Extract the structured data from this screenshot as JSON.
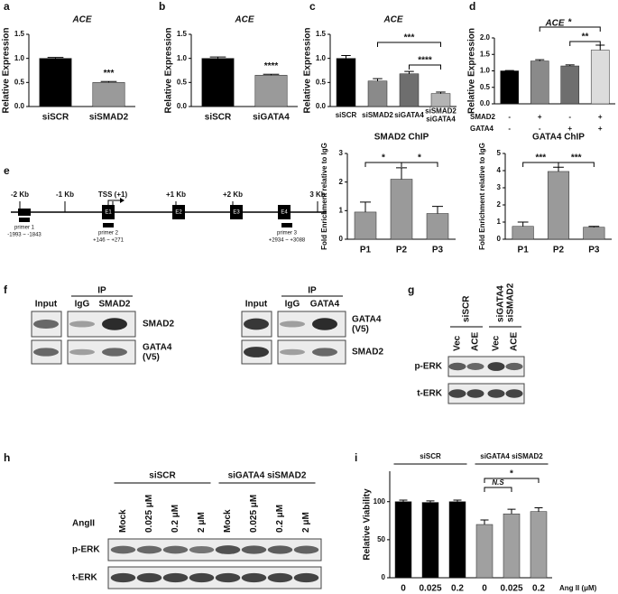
{
  "panels": [
    "a",
    "b",
    "c",
    "d",
    "e",
    "f",
    "g",
    "h",
    "i"
  ],
  "chart_data": [
    {
      "type": "bar",
      "title": "ACE",
      "y_label": "Relative Expression",
      "categories": [
        "siSCR",
        "siSMAD2"
      ],
      "values": [
        1.0,
        0.5
      ],
      "errors": [
        0.02,
        0.02
      ],
      "colors": [
        "#000000",
        "#9a9a9a"
      ],
      "ylim": [
        0,
        1.5
      ],
      "yticks": [
        {
          "value": 0,
          "label": "0.0"
        },
        0.5,
        {
          "value": 1,
          "label": "1.0"
        },
        1.5
      ],
      "annotations": [
        "***"
      ]
    },
    {
      "type": "bar",
      "title": "ACE",
      "y_label": "Relative Expression",
      "categories": [
        "siSCR",
        "siGATA4"
      ],
      "values": [
        1.0,
        0.65
      ],
      "errors": [
        0.03,
        0.02
      ],
      "colors": [
        "#000000",
        "#9a9a9a"
      ],
      "ylim": [
        0,
        1.5
      ],
      "yticks": [
        {
          "value": 0,
          "label": "0.0"
        },
        0.5,
        {
          "value": 1,
          "label": "1.0"
        },
        1.5
      ],
      "annotations": [
        "****"
      ]
    },
    {
      "type": "bar",
      "title": "ACE",
      "y_label": "Relative Expression",
      "categories": [
        "siSCR",
        "siSMAD2",
        "siGATA4",
        "siSMAD2\nsiGATA4"
      ],
      "values": [
        1.0,
        0.53,
        0.68,
        0.27
      ],
      "errors": [
        0.06,
        0.05,
        0.05,
        0.03
      ],
      "colors": [
        "#000000",
        "#8a8a8a",
        "#6e6e6e",
        "#b4b4b4"
      ],
      "ylim": [
        0,
        1.5
      ],
      "yticks": [
        {
          "value": 0,
          "label": "0.0"
        },
        0.5,
        {
          "value": 1,
          "label": "1.0"
        },
        1.5
      ],
      "annotations": [
        "***",
        "****"
      ]
    },
    {
      "type": "bar",
      "title": "ACE",
      "y_label": "Relative Expression",
      "categories": [
        null,
        null,
        null,
        null
      ],
      "values": [
        1.0,
        1.3,
        1.15,
        1.63
      ],
      "errors": [
        0.01,
        0.04,
        0.03,
        0.15
      ],
      "colors": [
        "#000000",
        "#8a8a8a",
        "#6e6e6e",
        "#dcdcdc"
      ],
      "ylim": [
        0,
        2
      ],
      "yticks": [
        {
          "value": 0,
          "label": "0.0"
        },
        0.5,
        {
          "value": 1,
          "label": "1.0"
        },
        1.5,
        {
          "value": 2,
          "label": "2.0"
        }
      ],
      "annotations": [
        "*",
        "**"
      ],
      "factors": [
        {
          "name": "SMAD2",
          "levels": [
            "-",
            "+",
            "-",
            "+"
          ]
        },
        {
          "name": "GATA4",
          "levels": [
            "-",
            "-",
            "+",
            "+"
          ]
        }
      ]
    },
    {
      "type": "bar",
      "title": "SMAD2 ChIP",
      "y_label": "Fold Enrichment relative to IgG",
      "categories": [
        "P1",
        "P2",
        "P3"
      ],
      "values": [
        0.95,
        2.1,
        0.9
      ],
      "errors": [
        0.35,
        0.4,
        0.25
      ],
      "colors": [
        "#9a9a9a",
        "#9a9a9a",
        "#9a9a9a"
      ],
      "ylim": [
        0,
        3
      ],
      "yticks": [
        0,
        1,
        2,
        3
      ],
      "annotations": [
        "*",
        "*"
      ]
    },
    {
      "type": "bar",
      "title": "GATA4 ChIP",
      "y_label": "Fold Enrichment relative to IgG",
      "categories": [
        "P1",
        "P2",
        "P3"
      ],
      "values": [
        0.75,
        3.95,
        0.7
      ],
      "errors": [
        0.25,
        0.25,
        0.05
      ],
      "colors": [
        "#9a9a9a",
        "#9a9a9a",
        "#9a9a9a"
      ],
      "ylim": [
        0,
        5
      ],
      "yticks": [
        0,
        1,
        2,
        3,
        4,
        5
      ],
      "annotations": [
        "***",
        "***"
      ]
    },
    {
      "type": "bar",
      "title": null,
      "y_label": "Relative Viability",
      "x_label": "Ang II (μM)",
      "categories": [
        "0",
        "0.025",
        "0.2",
        "0",
        "0.025",
        "0.2"
      ],
      "values": [
        100,
        99,
        100,
        70,
        84,
        87
      ],
      "errors": [
        2,
        2,
        2,
        6,
        6,
        5
      ],
      "colors": [
        "#000000",
        "#000000",
        "#000000",
        "#a0a0a0",
        "#a0a0a0",
        "#a0a0a0"
      ],
      "ylim": [
        0,
        140
      ],
      "yticks": [
        0,
        50,
        100
      ],
      "annotations": [
        "N.S",
        "*"
      ],
      "groups": [
        "siSCR",
        "siGATA4 siSMAD2"
      ]
    }
  ],
  "gene_diagram": {
    "positions": [
      "-2 Kb",
      "-1 Kb",
      "TSS (+1)",
      "+1 Kb",
      "+2 Kb",
      "3 Kb"
    ],
    "exons": [
      "E1",
      "E2",
      "E3",
      "E4"
    ],
    "primers": [
      {
        "name": "primer 1",
        "range": "-1993 ~ -1843"
      },
      {
        "name": "primer 2",
        "range": "+146 ~ +271"
      },
      {
        "name": "primer 3",
        "range": "+2934 ~ +3088"
      }
    ]
  },
  "blot_f": [
    {
      "input": "Input",
      "ip": "IP",
      "lanes": [
        "IgG",
        "SMAD2"
      ],
      "rows": [
        "SMAD2",
        "GATA4\n(V5)"
      ]
    },
    {
      "input": "Input",
      "ip": "IP",
      "lanes": [
        "IgG",
        "GATA4"
      ],
      "rows": [
        "GATA4\n(V5)",
        "SMAD2"
      ]
    }
  ],
  "blot_g": {
    "groups": [
      "siSCR",
      "siGATA4\nsiSMAD2"
    ],
    "lanes": [
      "Vec",
      "ACE",
      "Vec",
      "ACE"
    ],
    "rows": [
      "p-ERK",
      "t-ERK"
    ]
  },
  "blot_h": {
    "treatment": "AngII",
    "groups": [
      "siSCR",
      "siGATA4 siSMAD2"
    ],
    "lanes": [
      "Mock",
      "0.025 μM",
      "0.2 μM",
      "2 μM",
      "Mock",
      "0.025 μM",
      "0.2 μM",
      "2 μM"
    ],
    "rows": [
      "p-ERK",
      "t-ERK"
    ]
  }
}
